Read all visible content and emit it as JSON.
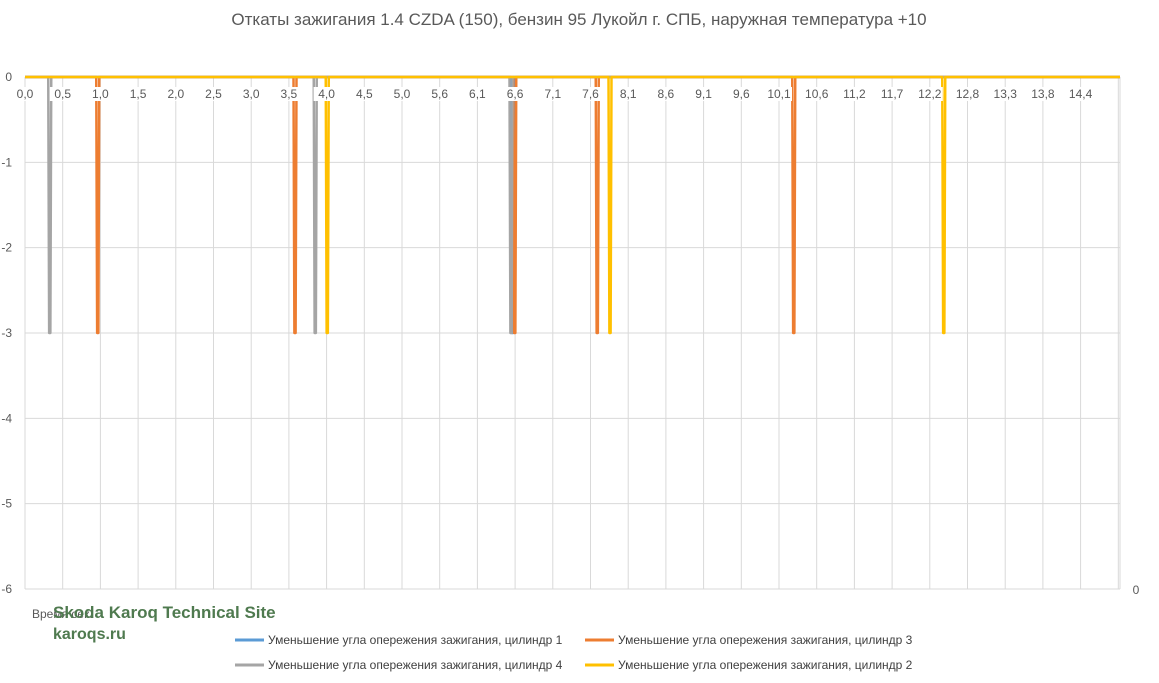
{
  "chart_data": {
    "type": "line",
    "title": "Откаты зажигания 1.4 CZDA (150), бензин 95 Лукойл г. СПБ, наружная температура +10",
    "xlabel": "Время сек.",
    "ylabel": "",
    "x_tick_labels": [
      "0,0",
      "0,5",
      "1,0",
      "1,5",
      "2,0",
      "2,5",
      "3,0",
      "3,5",
      "4,0",
      "4,5",
      "5,0",
      "5,6",
      "6,1",
      "6,6",
      "7,1",
      "7,6",
      "8,1",
      "8,6",
      "9,1",
      "9,6",
      "10,1",
      "10,6",
      "11,2",
      "11,7",
      "12,2",
      "12,8",
      "13,3",
      "13,8",
      "14,4"
    ],
    "xlim": [
      0,
      14.6
    ],
    "ylim": [
      -6,
      0
    ],
    "y_ticks": [
      0,
      -1,
      -2,
      -3,
      -4,
      -5,
      -6
    ],
    "y2_ticks": [
      0
    ],
    "grid": true,
    "legend_position": "bottom",
    "series": [
      {
        "name": "Уменьшение угла опережения зажигания, цилиндр 1",
        "color": "#5b9bd5",
        "events": [
          {
            "x": 6.5,
            "y": -3
          }
        ]
      },
      {
        "name": "Уменьшение угла опережения зажигания, цилиндр 3",
        "color": "#ed7d31",
        "events": [
          {
            "x": 0.97,
            "y": -3
          },
          {
            "x": 3.6,
            "y": -3
          },
          {
            "x": 6.53,
            "y": -3
          },
          {
            "x": 7.63,
            "y": -3
          },
          {
            "x": 10.25,
            "y": -3
          }
        ]
      },
      {
        "name": "Уменьшение угла опережения зажигания, цилиндр 4",
        "color": "#a5a5a5",
        "events": [
          {
            "x": 0.33,
            "y": -3
          },
          {
            "x": 3.87,
            "y": -3
          },
          {
            "x": 6.48,
            "y": -3
          }
        ]
      },
      {
        "name": "Уменьшение угла опережения зажигания, цилиндр 2",
        "color": "#ffc000",
        "events": [
          {
            "x": 4.03,
            "y": -3
          },
          {
            "x": 7.8,
            "y": -3
          },
          {
            "x": 12.25,
            "y": -3
          }
        ]
      }
    ]
  },
  "watermark": {
    "line1": "Skoda Karoq Technical Site",
    "line2": "karoqs.ru"
  }
}
